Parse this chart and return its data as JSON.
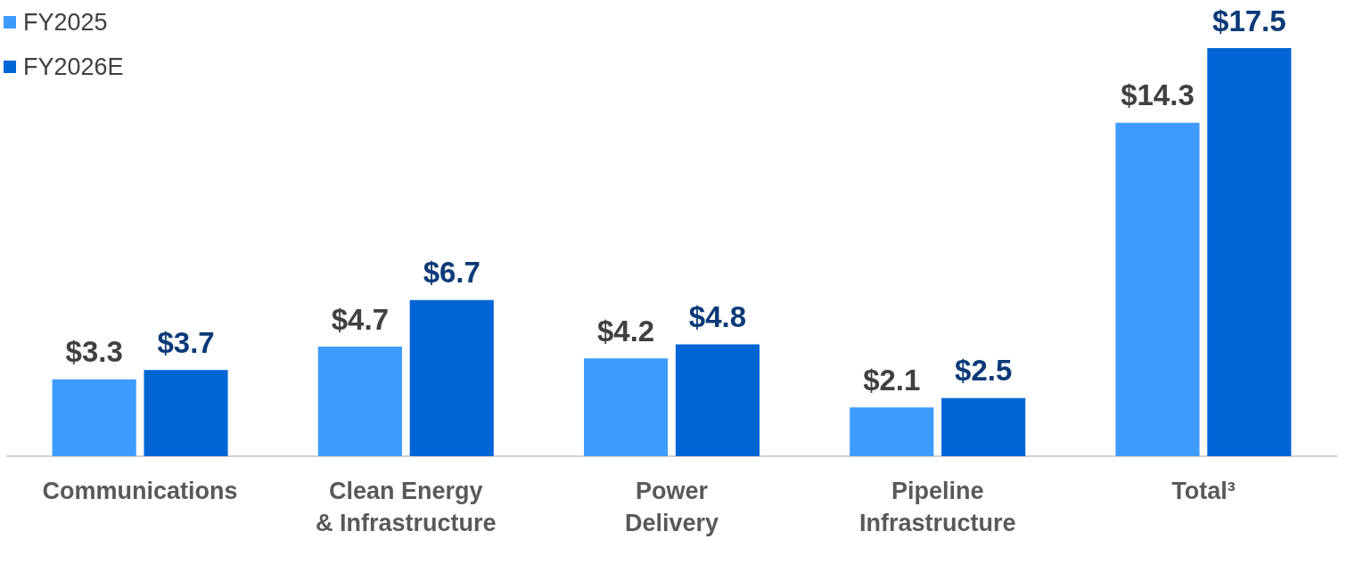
{
  "chart_data": {
    "type": "bar",
    "categories": [
      "Communications",
      "Clean Energy\n& Infrastructure",
      "Power\nDelivery",
      "Pipeline\nInfrastructure",
      "Total³"
    ],
    "series": [
      {
        "name": "FY2025",
        "color": "#3d9bff",
        "values": [
          3.3,
          4.7,
          4.2,
          2.1,
          14.3
        ],
        "value_labels": [
          "$3.3",
          "$4.7",
          "$4.2",
          "$2.1",
          "$14.3"
        ]
      },
      {
        "name": "FY2026E",
        "color": "#0066d6",
        "values": [
          3.7,
          6.7,
          4.8,
          2.5,
          17.5
        ],
        "value_labels": [
          "$3.7",
          "$6.7",
          "$4.8",
          "$2.5",
          "$17.5"
        ]
      }
    ],
    "grid": false,
    "legend": "top left"
  }
}
